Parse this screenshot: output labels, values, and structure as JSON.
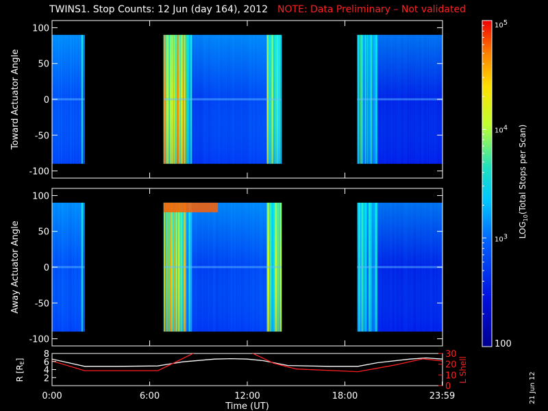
{
  "title": {
    "main": "TWINS1. Stop Counts: 12 Jun (day 164), 2012",
    "note": "NOTE: Data Preliminary – Not validated"
  },
  "stamp": "21 Jun 12",
  "colors": {
    "background": "#000000",
    "note": "#ff2020",
    "r_line": "#ffffff",
    "lshell_line": "#ff2020"
  },
  "chart_data": [
    {
      "type": "heatmap",
      "panel": "toward",
      "ylabel": "Toward Actuator Angle",
      "ylim": [
        -110,
        110
      ],
      "yticks": [
        100,
        50,
        0,
        -50,
        -100
      ],
      "xlim": [
        0,
        24
      ],
      "data_angle_range": [
        -90,
        90
      ],
      "data_intervals_ut_hours": [
        [
          0.0,
          2.0
        ],
        [
          6.85,
          14.1
        ],
        [
          18.75,
          23.98
        ]
      ],
      "gap_intervals_ut_hours": [
        [
          2.0,
          6.85
        ],
        [
          14.1,
          18.75
        ]
      ],
      "log10_counts_by_interval": [
        2.9,
        3.1,
        2.85
      ]
    },
    {
      "type": "heatmap",
      "panel": "away",
      "ylabel": "Away Actuator Angle",
      "ylim": [
        -110,
        110
      ],
      "yticks": [
        100,
        50,
        0,
        -50,
        -100
      ],
      "xlim": [
        0,
        24
      ],
      "data_angle_range": [
        -90,
        90
      ],
      "data_intervals_ut_hours": [
        [
          0.0,
          2.0
        ],
        [
          6.85,
          14.1
        ],
        [
          18.75,
          23.98
        ]
      ],
      "gap_intervals_ut_hours": [
        [
          2.0,
          6.85
        ],
        [
          14.1,
          18.75
        ]
      ],
      "log10_counts_by_interval": [
        2.9,
        3.05,
        2.8
      ]
    },
    {
      "type": "line",
      "panel": "orbit",
      "xlabel": "Time (UT)",
      "xticks": [
        "0:00",
        "6:00",
        "12:00",
        "18:00",
        "23:59"
      ],
      "xtick_hours": [
        0,
        6,
        12,
        18,
        23.98
      ],
      "xlim": [
        0,
        24
      ],
      "ylabel_left": "R [R",
      "ylabel_left_sub": "E",
      "ylabel_left_close": "]",
      "yticks_left": [
        2,
        4,
        6,
        8
      ],
      "ylim_left": [
        0,
        8
      ],
      "ylabel_right": "L Shell",
      "yticks_right": [
        0,
        10,
        20,
        30
      ],
      "ylim_right": [
        0,
        30
      ],
      "series": [
        {
          "axis": "left",
          "x": [
            0,
            1,
            2,
            4,
            6.5,
            8,
            10,
            11,
            12,
            13,
            14.5,
            17,
            18.8,
            20,
            22,
            23,
            23.98
          ],
          "y": [
            6.6,
            5.7,
            4.8,
            4.8,
            4.9,
            5.9,
            6.6,
            6.7,
            6.6,
            6.2,
            5.0,
            4.8,
            4.8,
            5.7,
            6.6,
            6.9,
            6.6
          ]
        },
        {
          "axis": "right",
          "x": [
            0,
            2,
            6.5,
            7.6,
            8.8,
            12.2,
            13.6,
            15.0,
            18.8,
            21.0,
            22.8,
            23.98
          ],
          "y": [
            23,
            14,
            14,
            22,
            31,
            31,
            21,
            15.5,
            13,
            19,
            25,
            23
          ]
        }
      ]
    },
    {
      "type": "colorbar",
      "label_main": "LOG",
      "label_sub": "10",
      "label_rest": "(Total Stops per Scan)",
      "range": [
        2,
        5
      ],
      "ticks": [
        {
          "value": 5,
          "base": "10",
          "exp": "5"
        },
        {
          "value": 4,
          "base": "10",
          "exp": "4"
        },
        {
          "value": 3,
          "base": "10",
          "exp": "3"
        },
        {
          "value": 2,
          "base": "100",
          "exp": ""
        }
      ]
    }
  ]
}
